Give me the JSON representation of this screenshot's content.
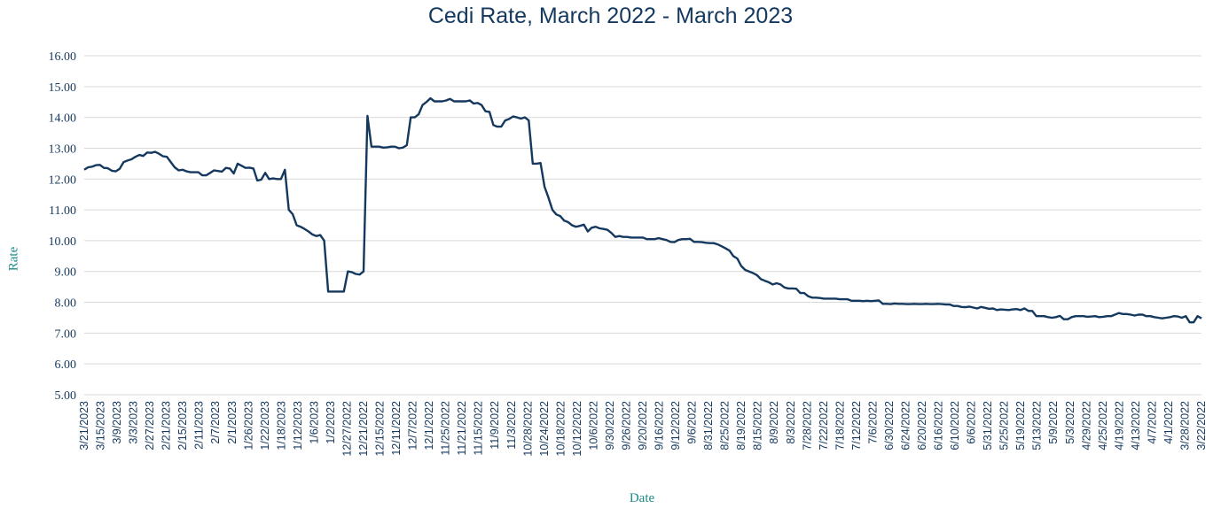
{
  "chart_data": {
    "type": "line",
    "title": "Cedi Rate, March 2022 - March 2023",
    "xlabel": "Date",
    "ylabel": "Rate",
    "ylim": [
      5,
      16
    ],
    "yticks": [
      "5.00",
      "6.00",
      "7.00",
      "8.00",
      "9.00",
      "10.00",
      "11.00",
      "12.00",
      "13.00",
      "14.00",
      "15.00",
      "16.00"
    ],
    "grid": true,
    "x_order": "newest-left",
    "tick_labels": [
      "3/21/2023",
      "3/15/2023",
      "3/9/2023",
      "3/3/2023",
      "2/27/2023",
      "2/21/2023",
      "2/15/2023",
      "2/11/2023",
      "2/7/2023",
      "2/1/2023",
      "1/26/2023",
      "1/22/2023",
      "1/18/2023",
      "1/12/2023",
      "1/6/2023",
      "1/2/2023",
      "12/27/2022",
      "12/21/2022",
      "12/15/2022",
      "12/11/2022",
      "12/7/2022",
      "12/1/2022",
      "11/25/2022",
      "11/21/2022",
      "11/15/2022",
      "11/9/2022",
      "11/3/2022",
      "10/28/2022",
      "10/24/2022",
      "10/18/2022",
      "10/12/2022",
      "10/6/2022",
      "9/30/2022",
      "9/26/2022",
      "9/20/2022",
      "9/16/2022",
      "9/12/2022",
      "9/6/2022",
      "8/31/2022",
      "8/25/2022",
      "8/19/2022",
      "8/15/2022",
      "8/9/2022",
      "8/3/2022",
      "7/28/2022",
      "7/22/2022",
      "7/18/2022",
      "7/12/2022",
      "7/6/2022",
      "6/30/2022",
      "6/24/2022",
      "6/20/2022",
      "6/16/2022",
      "6/10/2022",
      "6/6/2022",
      "5/31/2022",
      "5/25/2022",
      "5/19/2022",
      "5/13/2022",
      "5/9/2022",
      "5/3/2022",
      "4/29/2022",
      "4/25/2022",
      "4/19/2022",
      "4/13/2022",
      "4/7/2022",
      "4/1/2022",
      "3/28/2022",
      "3/22/2022"
    ],
    "series": [
      {
        "color": "#14385e",
        "values": [
          12.3,
          12.38,
          12.4,
          12.45,
          12.46,
          12.36,
          12.35,
          12.27,
          12.25,
          12.33,
          12.55,
          12.6,
          12.64,
          12.72,
          12.78,
          12.75,
          12.86,
          12.85,
          12.88,
          12.82,
          12.74,
          12.72,
          12.55,
          12.38,
          12.28,
          12.3,
          12.25,
          12.22,
          12.22,
          12.22,
          12.12,
          12.12,
          12.2,
          12.28,
          12.26,
          12.24,
          12.36,
          12.34,
          12.18,
          12.5,
          12.43,
          12.36,
          12.37,
          12.34,
          11.95,
          11.98,
          12.2,
          12.0,
          12.02,
          12.0,
          12.0,
          12.3,
          11.0,
          10.86,
          10.5,
          10.45,
          10.38,
          10.3,
          10.2,
          10.15,
          10.18,
          10.0,
          8.35,
          8.35,
          8.35,
          8.35,
          8.35,
          9.0,
          8.98,
          8.92,
          8.9,
          9.0,
          14.05,
          13.05,
          13.05,
          13.05,
          13.02,
          13.03,
          13.05,
          13.05,
          13.0,
          13.02,
          13.1,
          14.0,
          14.0,
          14.1,
          14.4,
          14.5,
          14.62,
          14.52,
          14.52,
          14.52,
          14.55,
          14.6,
          14.52,
          14.52,
          14.52,
          14.52,
          14.55,
          14.45,
          14.47,
          14.4,
          14.2,
          14.18,
          13.75,
          13.7,
          13.7,
          13.9,
          13.95,
          14.03,
          14.0,
          13.96,
          14.0,
          13.9,
          12.5,
          12.5,
          12.52,
          11.75,
          11.4,
          11.0,
          10.85,
          10.8,
          10.65,
          10.6,
          10.5,
          10.45,
          10.48,
          10.52,
          10.3,
          10.42,
          10.45,
          10.4,
          10.38,
          10.35,
          10.25,
          10.12,
          10.15,
          10.12,
          10.12,
          10.1,
          10.1,
          10.1,
          10.1,
          10.05,
          10.05,
          10.05,
          10.08,
          10.05,
          10.02,
          9.96,
          9.95,
          10.02,
          10.05,
          10.05,
          10.06,
          9.96,
          9.96,
          9.95,
          9.93,
          9.92,
          9.92,
          9.88,
          9.82,
          9.75,
          9.68,
          9.5,
          9.42,
          9.18,
          9.05,
          9.0,
          8.95,
          8.88,
          8.75,
          8.7,
          8.65,
          8.58,
          8.62,
          8.58,
          8.48,
          8.45,
          8.45,
          8.44,
          8.3,
          8.3,
          8.2,
          8.15,
          8.15,
          8.14,
          8.12,
          8.12,
          8.12,
          8.12,
          8.1,
          8.1,
          8.1,
          8.05,
          8.05,
          8.05,
          8.04,
          8.05,
          8.04,
          8.05,
          8.06,
          7.95,
          7.95,
          7.94,
          7.96,
          7.95,
          7.95,
          7.94,
          7.94,
          7.95,
          7.94,
          7.94,
          7.95,
          7.94,
          7.94,
          7.95,
          7.94,
          7.93,
          7.93,
          7.88,
          7.88,
          7.85,
          7.84,
          7.86,
          7.83,
          7.8,
          7.85,
          7.82,
          7.79,
          7.8,
          7.75,
          7.77,
          7.76,
          7.75,
          7.77,
          7.78,
          7.75,
          7.8,
          7.72,
          7.72,
          7.55,
          7.55,
          7.55,
          7.52,
          7.5,
          7.52,
          7.56,
          7.45,
          7.45,
          7.52,
          7.55,
          7.55,
          7.55,
          7.53,
          7.54,
          7.55,
          7.52,
          7.53,
          7.55,
          7.55,
          7.6,
          7.65,
          7.62,
          7.62,
          7.6,
          7.57,
          7.6,
          7.6,
          7.55,
          7.55,
          7.52,
          7.5,
          7.48,
          7.5,
          7.52,
          7.55,
          7.54,
          7.5,
          7.55,
          7.35,
          7.35,
          7.55,
          7.48
        ]
      }
    ]
  }
}
